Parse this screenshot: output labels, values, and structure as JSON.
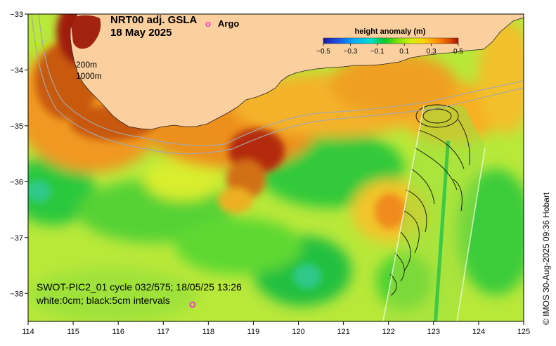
{
  "map": {
    "title_line1": "NRT00 adj. GSLA",
    "title_line2": "18 May 2025",
    "argo_symbol": "o",
    "argo_label": "Argo",
    "isobath_200": "200m",
    "isobath_1000": "1000m",
    "swot_line1": "SWOT-PIC2_01 cycle 032/575; 18/05/25 13:26",
    "swot_line2": "white:0cm; black:5cm intervals",
    "credit": "© IMOS 30-Aug-2025 09:36 Hobart",
    "colors": {
      "land": "#fbcf9e",
      "argo": "#ff33cc",
      "isobath": "#a8a8a8"
    }
  },
  "colorbar": {
    "title": "height anomaly (m)",
    "tick_labels": [
      "−0.5",
      "−0.3",
      "−0.1",
      "0.1",
      "0.3",
      "0.5"
    ],
    "stops": [
      "#1c1aa0",
      "#1e4ee0",
      "#00a8ff",
      "#00e0d0",
      "#00c830",
      "#7ee000",
      "#d4f000",
      "#ffd000",
      "#ff8a00",
      "#e05000",
      "#a01000"
    ]
  },
  "chart_data": {
    "type": "heatmap",
    "variable": "sea surface height anomaly (m)",
    "title": "NRT00 adj. GSLA, 18 May 2025",
    "xlim": [
      114,
      125
    ],
    "ylim": [
      -38.5,
      -33
    ],
    "x_ticks": [
      114,
      115,
      116,
      117,
      118,
      119,
      120,
      121,
      122,
      123,
      124,
      125
    ],
    "y_ticks": [
      -33,
      -34,
      -35,
      -36,
      -37,
      -38
    ],
    "x_tick_labels": [
      "114",
      "115",
      "116",
      "117",
      "118",
      "119",
      "120",
      "121",
      "122",
      "123",
      "124",
      "125"
    ],
    "y_tick_labels": [
      "−33",
      "−34",
      "−35",
      "−36",
      "−37",
      "−38"
    ],
    "color_range": [
      -0.5,
      0.5
    ],
    "argo_floats": [
      {
        "lon": 117.65,
        "lat": -38.2
      }
    ]
  }
}
